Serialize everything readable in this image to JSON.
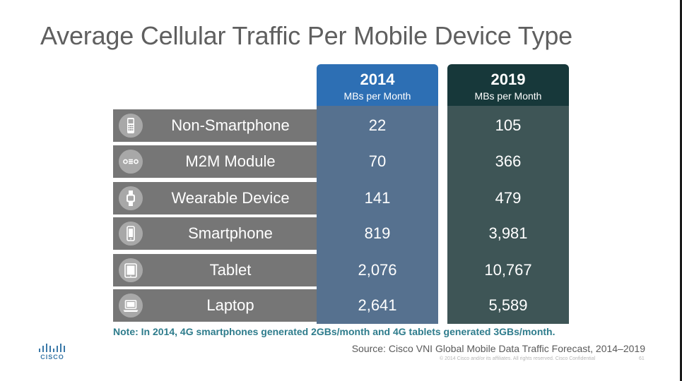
{
  "title": "Average Cellular Traffic Per Mobile Device Type",
  "columns": [
    {
      "year": "2014",
      "unit": "MBs per Month"
    },
    {
      "year": "2019",
      "unit": "MBs per Month"
    }
  ],
  "rows": [
    {
      "label": "Non-Smartphone",
      "icon": "feature-phone-icon",
      "v2014": "22",
      "v2019": "105"
    },
    {
      "label": "M2M Module",
      "icon": "m2m-module-icon",
      "v2014": "70",
      "v2019": "366"
    },
    {
      "label": "Wearable Device",
      "icon": "wearable-icon",
      "v2014": "141",
      "v2019": "479"
    },
    {
      "label": "Smartphone",
      "icon": "smartphone-icon",
      "v2014": "819",
      "v2019": "3,981"
    },
    {
      "label": "Tablet",
      "icon": "tablet-icon",
      "v2014": "2,076",
      "v2019": "10,767"
    },
    {
      "label": "Laptop",
      "icon": "laptop-icon",
      "v2014": "2,641",
      "v2019": "5,589"
    }
  ],
  "note": "Note: In 2014, 4G smartphones generated 2GBs/month and 4G tablets generated 3GBs/month.",
  "source": "Source: Cisco VNI Global Mobile Data Traffic Forecast, 2014–2019",
  "footer": {
    "copyright": "© 2014 Cisco and/or its affiliates. All rights reserved.   Cisco Confidential",
    "page": "61",
    "logo_text": "CISCO"
  },
  "colors": {
    "header_2014": "#2d6fb4",
    "header_2019": "#17383a",
    "cell_2014": "#56718f",
    "cell_2019": "#3e5556",
    "label_cell": "#767676",
    "note": "#2e7c8c"
  }
}
